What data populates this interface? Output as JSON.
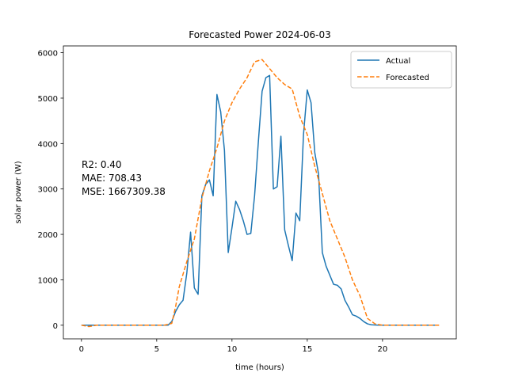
{
  "chart_data": {
    "type": "line",
    "title": "Forecasted Power 2024-06-03",
    "xlabel": "time (hours)",
    "ylabel": "solar power (W)",
    "xlim": [
      -1.2,
      24.9
    ],
    "ylim": [
      -300,
      6150
    ],
    "x_ticks": [
      0,
      5,
      10,
      15,
      20
    ],
    "y_ticks": [
      0,
      1000,
      2000,
      3000,
      4000,
      5000,
      6000
    ],
    "grid": false,
    "legend_position": "top-right",
    "annotations": [
      "R2: 0.40",
      "MAE: 708.43",
      "MSE: 1667309.38"
    ],
    "series": [
      {
        "name": "Actual",
        "color": "#1f77b4",
        "style": "solid",
        "x": [
          0,
          5.75,
          6,
          6.25,
          6.5,
          6.75,
          7,
          7.25,
          7.5,
          7.75,
          8,
          8.25,
          8.5,
          8.75,
          9,
          9.25,
          9.5,
          9.75,
          10,
          10.25,
          10.5,
          10.75,
          11,
          11.25,
          11.5,
          11.75,
          12,
          12.25,
          12.5,
          12.75,
          13,
          13.25,
          13.5,
          13.75,
          14,
          14.25,
          14.5,
          14.75,
          15,
          15.25,
          15.5,
          15.75,
          16,
          16.25,
          16.5,
          16.75,
          17,
          17.25,
          17.5,
          17.75,
          18,
          18.25,
          18.5,
          18.75,
          19,
          19.25,
          19.5,
          19.75,
          20,
          23.75
        ],
        "values": [
          0,
          0,
          80,
          300,
          450,
          550,
          1150,
          2050,
          820,
          680,
          2850,
          3100,
          3200,
          2850,
          5080,
          4700,
          3850,
          1600,
          2150,
          2730,
          2550,
          2300,
          2000,
          2020,
          2850,
          4030,
          5150,
          5450,
          5500,
          3000,
          3050,
          4160,
          2100,
          1750,
          1420,
          2470,
          2300,
          4200,
          5180,
          4900,
          3800,
          3330,
          1600,
          1300,
          1100,
          900,
          880,
          800,
          550,
          400,
          230,
          200,
          150,
          80,
          30,
          10,
          5,
          0,
          0,
          0
        ]
      },
      {
        "name": "Forecasted",
        "color": "#ff7f0e",
        "style": "dashed",
        "x": [
          0,
          0.5,
          1,
          5.5,
          6,
          6.25,
          6.5,
          7,
          7.5,
          8,
          8.5,
          9,
          9.5,
          10,
          10.5,
          11,
          11.5,
          12,
          12.5,
          13,
          13.5,
          14,
          14.5,
          15,
          15.5,
          16,
          16.5,
          17,
          17.5,
          18,
          18.5,
          19,
          19.5,
          20,
          23.75
        ],
        "values": [
          0,
          -30,
          0,
          0,
          40,
          400,
          850,
          1400,
          1900,
          2800,
          3400,
          3900,
          4500,
          4900,
          5200,
          5450,
          5800,
          5850,
          5650,
          5450,
          5300,
          5200,
          4600,
          4200,
          3500,
          2900,
          2300,
          1900,
          1500,
          1000,
          650,
          150,
          30,
          0,
          0
        ]
      }
    ]
  }
}
